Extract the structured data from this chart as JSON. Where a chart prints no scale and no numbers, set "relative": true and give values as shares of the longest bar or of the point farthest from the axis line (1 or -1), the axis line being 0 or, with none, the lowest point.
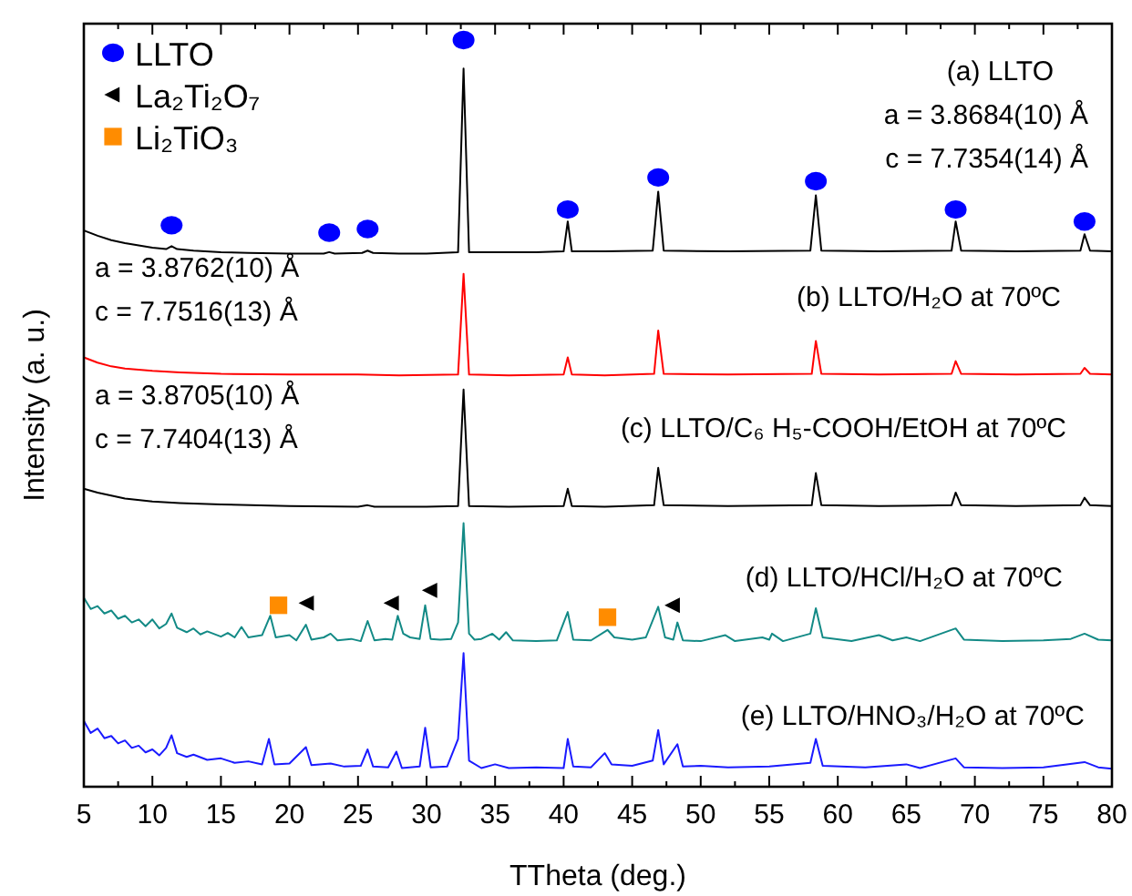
{
  "chart_data": {
    "type": "line",
    "relative": true,
    "xlabel": "TTheta (deg.)",
    "ylabel": "Intensity (a. u.)",
    "xlim": [
      5,
      80
    ],
    "xticks": [
      5,
      10,
      15,
      20,
      25,
      30,
      35,
      40,
      45,
      50,
      55,
      60,
      65,
      70,
      75,
      80
    ],
    "legend": "top left",
    "grid": false,
    "marker": "none",
    "line_style": "solid",
    "series": [
      {
        "color": "#000000",
        "x": [
          5,
          6,
          7,
          8,
          9,
          10,
          11,
          11.4,
          11.8,
          13,
          15,
          17,
          20,
          22.5,
          22.9,
          23.3,
          25.3,
          25.7,
          26.1,
          28,
          30,
          32.3,
          32.7,
          33.1,
          35,
          38,
          40,
          40.3,
          40.6,
          43,
          46.5,
          46.9,
          47.3,
          52,
          58,
          58.4,
          58.8,
          63,
          68.3,
          68.6,
          69,
          73,
          77.7,
          78,
          78.4,
          80
        ],
        "values": [
          0.745,
          0.738,
          0.732,
          0.728,
          0.725,
          0.722,
          0.72,
          0.724,
          0.72,
          0.718,
          0.716,
          0.715,
          0.714,
          0.714,
          0.716,
          0.714,
          0.715,
          0.718,
          0.715,
          0.714,
          0.714,
          0.716,
          0.962,
          0.716,
          0.716,
          0.716,
          0.717,
          0.757,
          0.717,
          0.717,
          0.718,
          0.797,
          0.718,
          0.717,
          0.718,
          0.792,
          0.718,
          0.717,
          0.718,
          0.757,
          0.718,
          0.717,
          0.718,
          0.74,
          0.718,
          0.717
        ]
      },
      {
        "color": "#ff0000",
        "x": [
          5,
          6,
          7,
          8,
          10,
          12,
          15,
          20,
          25,
          28,
          32.3,
          32.7,
          33.1,
          36,
          40,
          40.3,
          40.6,
          43,
          46.6,
          46.9,
          47.3,
          52,
          58.1,
          58.4,
          58.8,
          63,
          68.3,
          68.6,
          69,
          73,
          77.7,
          78,
          78.4,
          80
        ],
        "values": [
          0.575,
          0.568,
          0.563,
          0.56,
          0.557,
          0.555,
          0.553,
          0.552,
          0.552,
          0.551,
          0.552,
          0.687,
          0.552,
          0.551,
          0.552,
          0.575,
          0.552,
          0.551,
          0.553,
          0.611,
          0.553,
          0.552,
          0.553,
          0.597,
          0.553,
          0.552,
          0.553,
          0.57,
          0.553,
          0.552,
          0.553,
          0.561,
          0.553,
          0.552
        ]
      },
      {
        "color": "#000000",
        "x": [
          5,
          6,
          7,
          8,
          10,
          12,
          15,
          20,
          25,
          25.7,
          26.2,
          30,
          32.3,
          32.7,
          33.1,
          36,
          40,
          40.3,
          40.6,
          43,
          46.6,
          46.9,
          47.3,
          52,
          58.1,
          58.4,
          58.8,
          63,
          68.3,
          68.6,
          69,
          73,
          77.7,
          78,
          78.4,
          80
        ],
        "values": [
          0.399,
          0.394,
          0.39,
          0.386,
          0.382,
          0.38,
          0.378,
          0.376,
          0.375,
          0.377,
          0.375,
          0.375,
          0.376,
          0.532,
          0.376,
          0.375,
          0.376,
          0.399,
          0.376,
          0.375,
          0.377,
          0.427,
          0.377,
          0.376,
          0.377,
          0.42,
          0.377,
          0.376,
          0.377,
          0.394,
          0.377,
          0.376,
          0.377,
          0.387,
          0.377,
          0.376
        ]
      },
      {
        "color": "#138a86",
        "x": [
          5,
          5.5,
          6,
          6.5,
          7,
          7.5,
          8,
          8.5,
          9,
          9.5,
          10,
          10.5,
          11,
          11.4,
          11.8,
          12.5,
          13,
          13.5,
          14,
          15,
          15.5,
          16,
          16.5,
          17,
          18,
          18.6,
          19,
          20,
          20.5,
          21.2,
          21.6,
          22.5,
          23,
          23.5,
          24.5,
          25.2,
          25.7,
          26.2,
          27,
          27.5,
          27.9,
          28.3,
          28.8,
          29.5,
          29.9,
          30.3,
          31,
          31.8,
          32.3,
          32.7,
          33.1,
          33.5,
          34,
          34.8,
          35.3,
          35.8,
          36.3,
          38,
          39.5,
          40.3,
          40.7,
          42,
          43.2,
          43.7,
          45,
          46,
          46.9,
          47.4,
          48,
          48.3,
          48.7,
          50,
          51.8,
          52.5,
          54.5,
          55,
          55.2,
          56,
          58,
          58.4,
          58.9,
          61,
          63,
          64,
          65,
          66,
          68.6,
          69.2,
          72,
          75,
          77,
          78,
          79,
          80
        ],
        "values": [
          0.253,
          0.238,
          0.242,
          0.232,
          0.236,
          0.225,
          0.229,
          0.22,
          0.224,
          0.215,
          0.224,
          0.212,
          0.218,
          0.232,
          0.213,
          0.207,
          0.212,
          0.204,
          0.208,
          0.201,
          0.206,
          0.2,
          0.214,
          0.2,
          0.203,
          0.229,
          0.2,
          0.203,
          0.196,
          0.217,
          0.197,
          0.2,
          0.205,
          0.196,
          0.198,
          0.195,
          0.222,
          0.196,
          0.198,
          0.197,
          0.229,
          0.205,
          0.2,
          0.198,
          0.243,
          0.198,
          0.197,
          0.198,
          0.22,
          0.353,
          0.205,
          0.197,
          0.198,
          0.205,
          0.197,
          0.207,
          0.196,
          0.195,
          0.196,
          0.234,
          0.197,
          0.196,
          0.21,
          0.2,
          0.197,
          0.2,
          0.241,
          0.2,
          0.197,
          0.22,
          0.196,
          0.195,
          0.203,
          0.195,
          0.2,
          0.197,
          0.205,
          0.195,
          0.205,
          0.239,
          0.2,
          0.195,
          0.203,
          0.196,
          0.2,
          0.195,
          0.212,
          0.197,
          0.195,
          0.196,
          0.198,
          0.205,
          0.197,
          0.196
        ]
      },
      {
        "color": "#1a1aff",
        "x": [
          5,
          5.5,
          6,
          6.5,
          7,
          7.5,
          8,
          8.5,
          9,
          9.5,
          10,
          10.5,
          11,
          11.4,
          11.8,
          12.5,
          13,
          14,
          15,
          16,
          17,
          18,
          18.5,
          18.9,
          20,
          21.2,
          21.6,
          23,
          24,
          25.2,
          25.7,
          26.1,
          27.2,
          27.8,
          28.2,
          29.5,
          29.9,
          30.3,
          31.5,
          32.3,
          32.7,
          33.1,
          34,
          35,
          36,
          38,
          40,
          40.3,
          40.7,
          42,
          43,
          43.5,
          45,
          46.5,
          46.9,
          47.3,
          48.3,
          48.7,
          50,
          52,
          55,
          58,
          58.4,
          58.9,
          62,
          65,
          66,
          68.6,
          69.2,
          72,
          75,
          78,
          79,
          80
        ],
        "values": [
          0.088,
          0.072,
          0.078,
          0.065,
          0.068,
          0.058,
          0.062,
          0.052,
          0.055,
          0.046,
          0.05,
          0.042,
          0.052,
          0.069,
          0.045,
          0.04,
          0.043,
          0.036,
          0.038,
          0.032,
          0.034,
          0.03,
          0.064,
          0.03,
          0.031,
          0.053,
          0.029,
          0.031,
          0.027,
          0.028,
          0.05,
          0.027,
          0.026,
          0.047,
          0.025,
          0.027,
          0.079,
          0.026,
          0.027,
          0.064,
          0.179,
          0.035,
          0.025,
          0.03,
          0.025,
          0.026,
          0.025,
          0.064,
          0.027,
          0.026,
          0.045,
          0.03,
          0.028,
          0.035,
          0.076,
          0.03,
          0.057,
          0.027,
          0.028,
          0.026,
          0.027,
          0.032,
          0.064,
          0.028,
          0.026,
          0.03,
          0.025,
          0.038,
          0.026,
          0.025,
          0.026,
          0.033,
          0.026,
          0.024
        ]
      },
      {
        "type": "scatter",
        "name": "LLTO",
        "marker": "circle",
        "color": "#0000ff",
        "x": [
          11.4,
          22.9,
          25.7,
          32.7,
          40.3,
          46.9,
          58.4,
          68.6,
          78
        ],
        "values": [
          0.752,
          0.742,
          0.747,
          1,
          0.773,
          0.816,
          0.811,
          0.773,
          0.757
        ]
      },
      {
        "type": "scatter",
        "name": "La₂Ti₂O₇",
        "marker": "triangle",
        "color": "#000000",
        "x": [
          21.3,
          27.5,
          30.3,
          48
        ],
        "values": [
          0.246,
          0.246,
          0.263,
          0.243
        ]
      },
      {
        "type": "scatter",
        "name": "Li₂TiO₃",
        "marker": "square",
        "color": "#ff8c00",
        "x": [
          19.2,
          43.2
        ],
        "values": [
          0.243,
          0.227
        ]
      }
    ],
    "annotations": [
      "(a) LLTO",
      "a = 3.8684(10) Å",
      "c = 7.7354(14) Å",
      "a = 3.8762(10) Å",
      "c = 7.7516(13) Å",
      "(b) LLTO/H₂O at 70ºC",
      "a = 3.8705(10) Å",
      "c = 7.7404(13) Å",
      "(c) LLTO/C₆ H₅-COOH/EtOH at 70ºC",
      "(d) LLTO/HCl/H₂O at 70ºC",
      "(e) LLTO/HNO₃/H₂O at 70ºC"
    ]
  }
}
